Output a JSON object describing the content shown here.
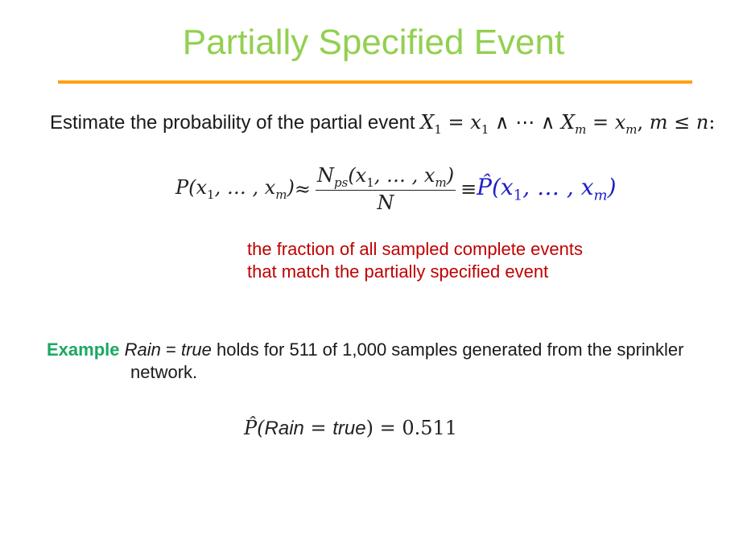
{
  "slide": {
    "title": "Partially Specified Event",
    "intro_text": "Estimate the probability of the partial event",
    "intro_math": {
      "X": "X",
      "sub1": "1",
      "eq": " = ",
      "x": "x",
      "and_dots": " ∧ ⋯ ∧ ",
      "subm": "m",
      "comma": ", ",
      "m": "m",
      "leq": " ≤ ",
      "n": "n",
      "colon": ":"
    },
    "formula": {
      "lhs": "P(x",
      "lhs_sub1": "1",
      "lhs_mid": ", … , x",
      "lhs_subm": "m",
      "lhs_close": ")",
      "approx": " ≈ ",
      "num_N": "N",
      "num_sub": "ps",
      "num_args": "(x",
      "num_sub1": "1",
      "num_mid": ", … , x",
      "num_subm": "m",
      "num_close": ")",
      "den": "N",
      "equiv": " ≡ ",
      "rhs": "P̂(x",
      "rhs_sub1": "1",
      "rhs_mid": ", … , x",
      "rhs_subm": "m",
      "rhs_close": ")"
    },
    "note_line1": "the fraction of all sampled complete events",
    "note_line2": "that match the partially specified event",
    "example": {
      "label": "Example",
      "var": "Rain",
      "eq": " = ",
      "val": "true",
      "text_line1": " holds for 511 of 1,000 samples generated from the sprinkler",
      "text_line2": "network."
    },
    "result": {
      "phat": "P̂(",
      "var": "Rain",
      "eq": " = ",
      "val": "true",
      "close": ") = ",
      "value": "0.511"
    },
    "colors": {
      "title": "#92d050",
      "rule": "#ffa012",
      "note": "#c00000",
      "example_label": "#1aa862",
      "estimator": "#1f1fc8"
    }
  }
}
